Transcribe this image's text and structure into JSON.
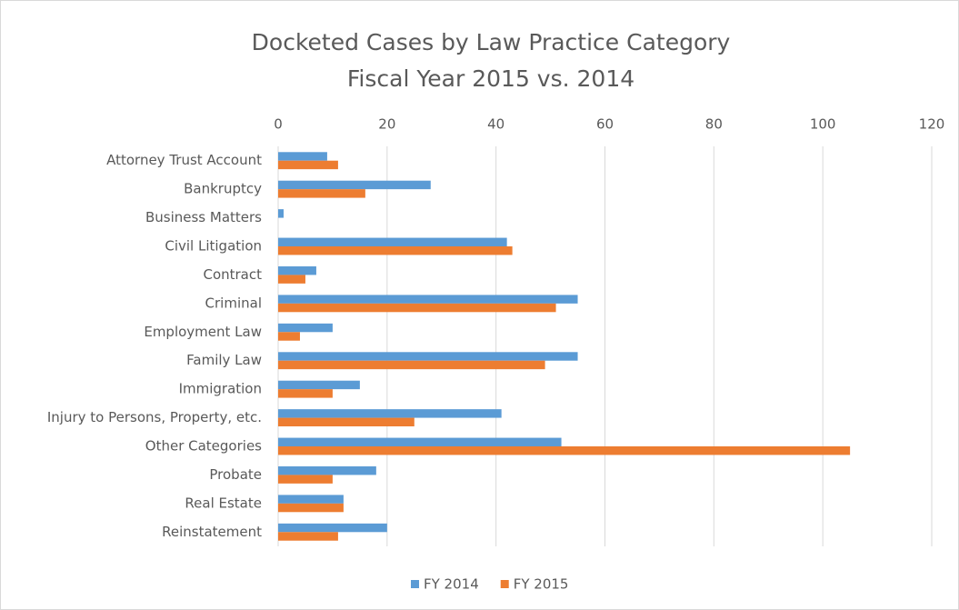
{
  "chart_data": {
    "type": "hbar",
    "title": "Docketed Cases by Law Practice Category",
    "subtitle": "Fiscal Year 2015 vs. 2014",
    "categories": [
      "Attorney Trust Account",
      "Bankruptcy",
      "Business Matters",
      "Civil Litigation",
      "Contract",
      "Criminal",
      "Employment Law",
      "Family Law",
      "Immigration",
      "Injury to Persons, Property, etc.",
      "Other Categories",
      "Probate",
      "Real Estate",
      "Reinstatement"
    ],
    "series": [
      {
        "name": "FY 2014",
        "color": "#5b9bd5",
        "values": [
          9,
          28,
          1,
          42,
          7,
          55,
          10,
          55,
          15,
          41,
          52,
          18,
          12,
          20
        ]
      },
      {
        "name": "FY 2015",
        "color": "#ed7d31",
        "values": [
          11,
          16,
          0,
          43,
          5,
          51,
          4,
          49,
          10,
          25,
          105,
          10,
          12,
          11
        ]
      }
    ],
    "xlim": [
      0,
      120
    ],
    "xticks": [
      0,
      20,
      40,
      60,
      80,
      100,
      120
    ],
    "grid": true,
    "legend": "bottom"
  }
}
